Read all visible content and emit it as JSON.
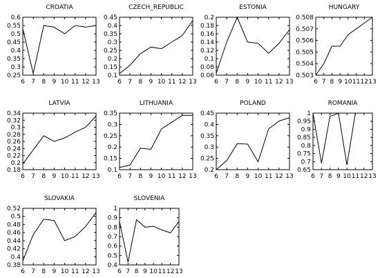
{
  "chart_data": [
    {
      "type": "line",
      "title": "CROATIA",
      "x": [
        6,
        7,
        8,
        9,
        10,
        11,
        12,
        13
      ],
      "values": [
        0.53,
        0.26,
        0.55,
        0.54,
        0.5,
        0.55,
        0.54,
        0.55
      ],
      "ylim": [
        0.25,
        0.6
      ],
      "yticks": [
        "0.25",
        "0.3",
        "0.35",
        "0.4",
        "0.45",
        "0.5",
        "0.55",
        "0.6"
      ],
      "xticks": [
        "6",
        "7",
        "8",
        "9",
        "10",
        "11",
        "12",
        "13"
      ]
    },
    {
      "type": "line",
      "title": "CZECH_REPUBLIC",
      "x": [
        6,
        7,
        8,
        9,
        10,
        11,
        12,
        13
      ],
      "values": [
        0.11,
        0.16,
        0.23,
        0.27,
        0.26,
        0.3,
        0.34,
        0.43
      ],
      "ylim": [
        0.1,
        0.45
      ],
      "yticks": [
        "0.1",
        "0.15",
        "0.2",
        "0.25",
        "0.3",
        "0.35",
        "0.4",
        "0.45"
      ],
      "xticks": [
        "6",
        "7",
        "8",
        "9",
        "10",
        "11",
        "12",
        "13"
      ]
    },
    {
      "type": "line",
      "title": "ESTONIA",
      "x": [
        6,
        7,
        8,
        9,
        10,
        11,
        12,
        13
      ],
      "values": [
        0.065,
        0.14,
        0.2,
        0.14,
        0.137,
        0.113,
        0.137,
        0.17
      ],
      "ylim": [
        0.06,
        0.2
      ],
      "yticks": [
        "0.06",
        "0.08",
        "0.1",
        "0.12",
        "0.14",
        "0.16",
        "0.18",
        "0.2"
      ],
      "xticks": [
        "6",
        "7",
        "8",
        "9",
        "10",
        "11",
        "12",
        "13"
      ]
    },
    {
      "type": "line",
      "title": "HUNGARY",
      "x": [
        6,
        7,
        8,
        9,
        10,
        11,
        12,
        13
      ],
      "values": [
        0.503,
        0.504,
        0.5055,
        0.5055,
        0.5065,
        0.507,
        0.5075,
        0.508
      ],
      "ylim": [
        0.503,
        0.508
      ],
      "yticks": [
        "0.503",
        "0.504",
        "0.505",
        "0.506",
        "0.507",
        "0.508"
      ],
      "xticks": [
        "6",
        "7",
        "8",
        "9",
        "10",
        "11",
        "12",
        "13"
      ]
    },
    {
      "type": "line",
      "title": "LATVIA",
      "x": [
        6,
        7,
        8,
        9,
        10,
        11,
        12,
        13
      ],
      "values": [
        0.196,
        0.236,
        0.276,
        0.26,
        0.27,
        0.286,
        0.3,
        0.332
      ],
      "ylim": [
        0.18,
        0.34
      ],
      "yticks": [
        "0.18",
        "0.2",
        "0.22",
        "0.24",
        "0.26",
        "0.28",
        "0.3",
        "0.32",
        "0.34"
      ],
      "xticks": [
        "6",
        "7",
        "8",
        "9",
        "10",
        "11",
        "12",
        "13"
      ]
    },
    {
      "type": "line",
      "title": "LITHUANIA",
      "x": [
        6,
        7,
        8,
        9,
        10,
        11,
        12,
        13
      ],
      "values": [
        0.11,
        0.12,
        0.195,
        0.19,
        0.28,
        0.31,
        0.34,
        0.34
      ],
      "ylim": [
        0.1,
        0.35
      ],
      "yticks": [
        "0.1",
        "0.15",
        "0.2",
        "0.25",
        "0.3",
        "0.35"
      ],
      "xticks": [
        "6",
        "7",
        "8",
        "9",
        "10",
        "11",
        "12",
        "13"
      ]
    },
    {
      "type": "line",
      "title": "POLAND",
      "x": [
        6,
        7,
        8,
        9,
        10,
        11,
        12,
        13
      ],
      "values": [
        0.2,
        0.24,
        0.315,
        0.313,
        0.235,
        0.38,
        0.415,
        0.43
      ],
      "ylim": [
        0.2,
        0.45
      ],
      "yticks": [
        "0.2",
        "0.25",
        "0.3",
        "0.35",
        "0.4",
        "0.45"
      ],
      "xticks": [
        "6",
        "7",
        "8",
        "9",
        "10",
        "11",
        "12",
        "13"
      ]
    },
    {
      "type": "line",
      "title": "ROMANIA",
      "x": [
        6,
        7,
        8,
        9,
        10,
        11,
        12,
        13
      ],
      "values": [
        1.0,
        0.69,
        0.98,
        1.0,
        0.68,
        1.0,
        1.0,
        1.0
      ],
      "ylim": [
        0.65,
        1.0
      ],
      "yticks": [
        "0.65",
        "0.7",
        "0.75",
        "0.8",
        "0.85",
        "0.9",
        "0.95",
        "1"
      ],
      "xticks": [
        "6",
        "7",
        "8",
        "9",
        "10",
        "11",
        "12",
        "13"
      ]
    },
    {
      "type": "line",
      "title": "SLOVAKIA",
      "x": [
        6,
        7,
        8,
        9,
        10,
        11,
        12,
        13
      ],
      "values": [
        0.39,
        0.455,
        0.493,
        0.49,
        0.44,
        0.45,
        0.475,
        0.51
      ],
      "ylim": [
        0.38,
        0.52
      ],
      "yticks": [
        "0.38",
        "0.4",
        "0.42",
        "0.44",
        "0.46",
        "0.48",
        "0.5",
        "0.52"
      ],
      "xticks": [
        "6",
        "7",
        "8",
        "9",
        "10",
        "11",
        "12",
        "13"
      ]
    },
    {
      "type": "line",
      "title": "SLOVENIA",
      "x": [
        6,
        7,
        8,
        9,
        10,
        11,
        12,
        13
      ],
      "values": [
        0.86,
        0.43,
        0.88,
        0.8,
        0.81,
        0.77,
        0.74,
        0.86
      ],
      "ylim": [
        0.4,
        1.0
      ],
      "yticks": [
        "0.4",
        "0.5",
        "0.6",
        "0.7",
        "0.8",
        "0.9",
        "1"
      ],
      "xticks": [
        "6",
        "7",
        "8",
        "9",
        "10",
        "11",
        "12",
        "13"
      ]
    }
  ]
}
